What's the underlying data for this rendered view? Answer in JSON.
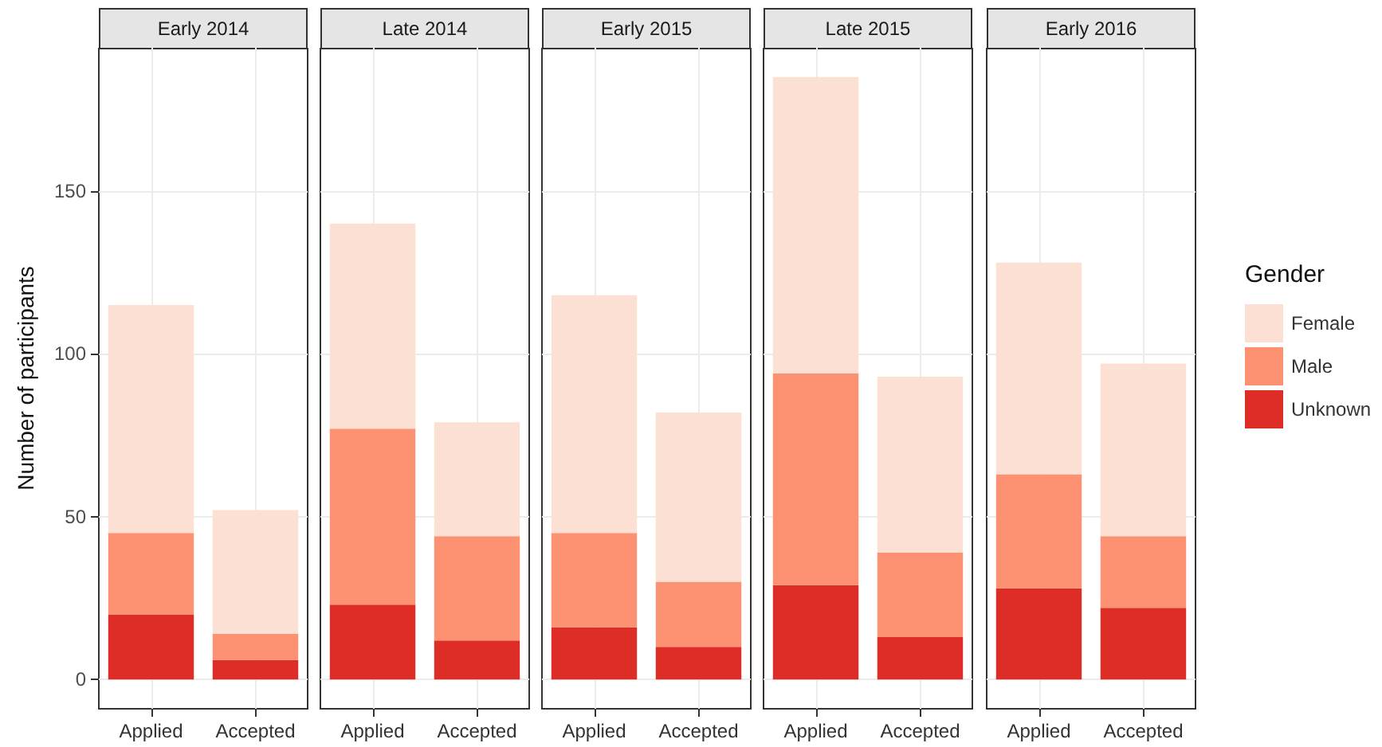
{
  "chart_data": [
    {
      "type": "bar",
      "title": "Early 2014",
      "ylabel": "Number of participants",
      "categories": [
        "Applied",
        "Accepted"
      ],
      "stacked": true,
      "ylim": [
        -9,
        194
      ],
      "yticks": [
        0,
        50,
        100,
        150
      ],
      "grid": true,
      "series": [
        {
          "color": "#de2d26",
          "values": [
            20,
            6
          ]
        },
        {
          "color": "#fc9272",
          "values": [
            25,
            8
          ]
        },
        {
          "color": "#fce0d4",
          "values": [
            70,
            38
          ]
        }
      ]
    },
    {
      "type": "bar",
      "title": "Late 2014",
      "categories": [
        "Applied",
        "Accepted"
      ],
      "stacked": true,
      "ylim": [
        -9,
        194
      ],
      "yticks": [
        0,
        50,
        100,
        150
      ],
      "grid": true,
      "tick_labels": "x",
      "series": [
        {
          "color": "#de2d26",
          "values": [
            23,
            12
          ]
        },
        {
          "color": "#fc9272",
          "values": [
            54,
            32
          ]
        },
        {
          "color": "#fce0d4",
          "values": [
            63,
            35
          ]
        }
      ]
    },
    {
      "type": "bar",
      "title": "Early 2015",
      "categories": [
        "Applied",
        "Accepted"
      ],
      "stacked": true,
      "ylim": [
        -9,
        194
      ],
      "yticks": [
        0,
        50,
        100,
        150
      ],
      "grid": true,
      "tick_labels": "x",
      "series": [
        {
          "color": "#de2d26",
          "values": [
            16,
            10
          ]
        },
        {
          "color": "#fc9272",
          "values": [
            29,
            20
          ]
        },
        {
          "color": "#fce0d4",
          "values": [
            73,
            52
          ]
        }
      ]
    },
    {
      "type": "bar",
      "title": "Late 2015",
      "categories": [
        "Applied",
        "Accepted"
      ],
      "stacked": true,
      "ylim": [
        -9,
        194
      ],
      "yticks": [
        0,
        50,
        100,
        150
      ],
      "grid": true,
      "tick_labels": "x",
      "series": [
        {
          "color": "#de2d26",
          "values": [
            29,
            13
          ]
        },
        {
          "color": "#fc9272",
          "values": [
            65,
            26
          ]
        },
        {
          "color": "#fce0d4",
          "values": [
            91,
            54
          ]
        }
      ]
    },
    {
      "type": "bar",
      "title": "Early 2016",
      "categories": [
        "Applied",
        "Accepted"
      ],
      "stacked": true,
      "ylim": [
        -9,
        194
      ],
      "yticks": [
        0,
        50,
        100,
        150
      ],
      "grid": true,
      "tick_labels": "x",
      "legend": "right",
      "legend_title": "Gender",
      "series": [
        {
          "name": "Unknown",
          "color": "#de2d26",
          "values": [
            28,
            22
          ]
        },
        {
          "name": "Male",
          "color": "#fc9272",
          "values": [
            35,
            22
          ]
        },
        {
          "name": "Female",
          "color": "#fce0d4",
          "values": [
            65,
            53
          ]
        }
      ]
    }
  ]
}
